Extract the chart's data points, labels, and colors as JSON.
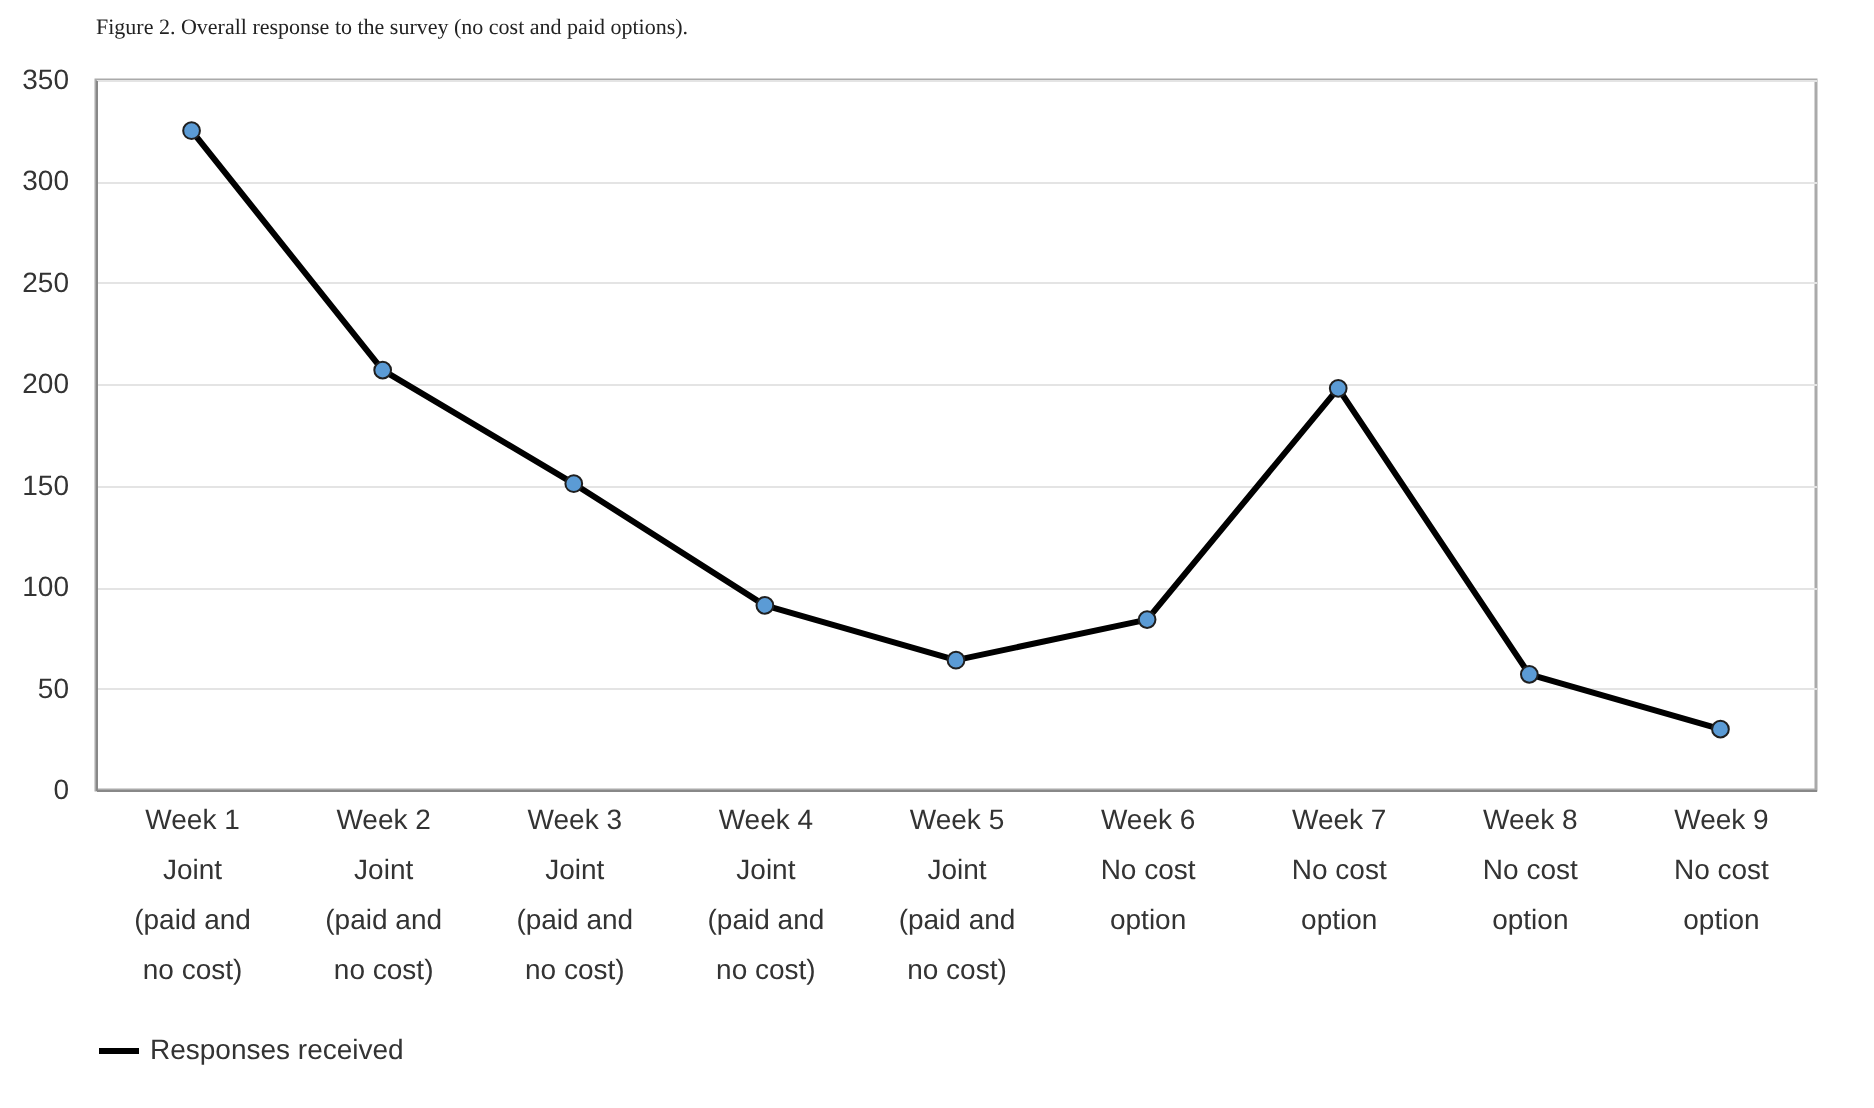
{
  "chart_data": {
    "type": "line",
    "title": "Figure 2. Overall response to the survey (no cost and paid options).",
    "categories": [
      "Week 1\nJoint\n(paid and\nno cost)",
      "Week 2\nJoint\n(paid and\nno cost)",
      "Week 3\nJoint\n(paid and\nno cost)",
      "Week 4\nJoint\n(paid and\nno cost)",
      "Week 5\nJoint\n(paid and\nno cost)",
      "Week 6\nNo cost\noption",
      "Week 7\nNo cost\noption",
      "Week 8\nNo cost\noption",
      "Week 9\nNo cost\noption"
    ],
    "series": [
      {
        "name": "Responses received",
        "color": "#000000",
        "values": [
          325,
          207,
          151,
          91,
          64,
          84,
          198,
          57,
          30
        ]
      }
    ],
    "ylim": [
      0,
      350
    ],
    "yticks": [
      0,
      50,
      100,
      150,
      200,
      250,
      300,
      350
    ],
    "grid": "y",
    "legend": "bottom",
    "marker": "circle",
    "line_style": "solid"
  }
}
